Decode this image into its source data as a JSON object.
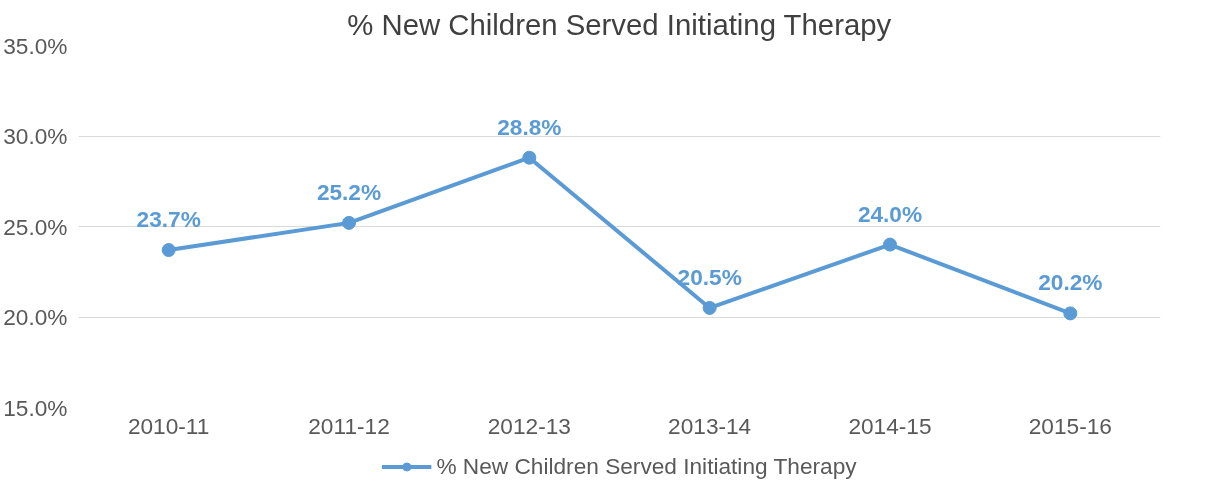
{
  "chart_data": {
    "type": "line",
    "title": "% New Children Served Initiating Therapy",
    "categories": [
      "2010-11",
      "2011-12",
      "2012-13",
      "2013-14",
      "2014-15",
      "2015-16"
    ],
    "series": [
      {
        "name": "% New Children Served Initiating Therapy",
        "color": "#5b9bd5",
        "values": [
          23.7,
          25.2,
          28.8,
          20.5,
          24.0,
          20.2
        ],
        "value_labels": [
          "23.7%",
          "25.2%",
          "28.8%",
          "20.5%",
          "24.0%",
          "20.2%"
        ]
      }
    ],
    "ylim": [
      15,
      35
    ],
    "yticks": [
      {
        "value": 15,
        "label": "15.0%"
      },
      {
        "value": 20,
        "label": "20.0%"
      },
      {
        "value": 25,
        "label": "25.0%"
      },
      {
        "value": 30,
        "label": "30.0%"
      },
      {
        "value": 35,
        "label": "35.0%"
      }
    ],
    "grid": "y",
    "legend": "bottom",
    "marker": "circle",
    "line_style": "solid"
  }
}
